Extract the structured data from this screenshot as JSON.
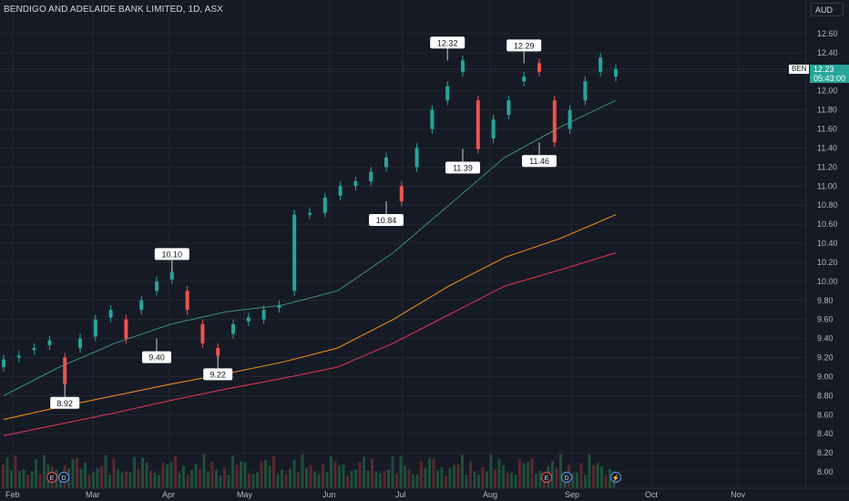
{
  "title": "BENDIGO AND ADELAIDE BANK LIMITED, 1D, ASX",
  "currency": "AUD",
  "symbol_tag": "BEN",
  "last_price": "12.23",
  "countdown": "05:43:00",
  "colors": {
    "background": "#161a25",
    "up": "#26a69a",
    "down": "#ef5350",
    "ma_short": "#3d8f75",
    "ma_mid": "#f7931a",
    "ma_long": "#e0384d",
    "grid": "#232733"
  },
  "chart_data": {
    "type": "candlestick",
    "y_axis": {
      "min": 7.9,
      "max": 12.75,
      "ticks": [
        "12.60",
        "12.40",
        "12.20",
        "12.00",
        "11.80",
        "11.60",
        "11.40",
        "11.20",
        "11.00",
        "10.80",
        "10.60",
        "10.40",
        "10.20",
        "10.00",
        "9.80",
        "9.60",
        "9.40",
        "9.20",
        "9.00",
        "8.80",
        "8.60",
        "8.40",
        "8.20",
        "8.00"
      ]
    },
    "x_axis": {
      "labels": [
        "Feb",
        "Mar",
        "Apr",
        "May",
        "Jun",
        "Jul",
        "Aug",
        "Sep",
        "Oct",
        "Nov"
      ]
    },
    "grid": true,
    "series": [
      {
        "name": "price",
        "points": [
          [
            "Feb",
            9.1,
            9.18
          ],
          [
            "Feb",
            9.2,
            9.22
          ],
          [
            "Feb",
            9.28,
            9.3
          ],
          [
            "Feb",
            9.33,
            9.38
          ],
          [
            "Feb",
            9.2,
            8.92
          ],
          [
            "Feb",
            9.3,
            9.4
          ],
          [
            "Mar",
            9.42,
            9.6
          ],
          [
            "Mar",
            9.62,
            9.7
          ],
          [
            "Mar",
            9.6,
            9.4
          ],
          [
            "Mar",
            9.7,
            9.8
          ],
          [
            "Mar",
            9.9,
            10.0
          ],
          [
            "Apr",
            10.02,
            10.1
          ],
          [
            "Apr",
            9.9,
            9.7
          ],
          [
            "Apr",
            9.55,
            9.35
          ],
          [
            "Apr",
            9.3,
            9.22
          ],
          [
            "Apr",
            9.45,
            9.55
          ],
          [
            "May",
            9.58,
            9.62
          ],
          [
            "May",
            9.6,
            9.7
          ],
          [
            "May",
            9.72,
            9.75
          ],
          [
            "May",
            9.9,
            10.7
          ],
          [
            "May",
            10.7,
            10.72
          ],
          [
            "Jun",
            10.72,
            10.88
          ],
          [
            "Jun",
            10.9,
            11.0
          ],
          [
            "Jun",
            11.0,
            11.05
          ],
          [
            "Jun",
            11.05,
            11.15
          ],
          [
            "Jun",
            11.2,
            11.3
          ],
          [
            "Jul",
            11.0,
            10.84
          ],
          [
            "Jul",
            11.2,
            11.4
          ],
          [
            "Jul",
            11.6,
            11.8
          ],
          [
            "Jul",
            11.9,
            12.05
          ],
          [
            "Jul",
            12.2,
            12.32
          ],
          [
            "Aug",
            11.9,
            11.39
          ],
          [
            "Aug",
            11.5,
            11.7
          ],
          [
            "Aug",
            11.75,
            11.9
          ],
          [
            "Aug",
            12.1,
            12.15
          ],
          [
            "Aug",
            12.29,
            12.2
          ],
          [
            "Sep",
            11.9,
            11.46
          ],
          [
            "Sep",
            11.6,
            11.8
          ],
          [
            "Sep",
            11.9,
            12.1
          ],
          [
            "Sep",
            12.2,
            12.35
          ],
          [
            "Sep",
            12.15,
            12.23
          ]
        ]
      },
      {
        "name": "",
        "values": [
          8.8,
          9.1,
          9.35,
          9.55,
          9.68,
          9.75,
          9.9,
          10.3,
          10.8,
          11.3,
          11.62,
          11.9
        ]
      },
      {
        "name": "",
        "values": [
          8.55,
          8.68,
          8.8,
          8.92,
          9.03,
          9.15,
          9.3,
          9.6,
          9.95,
          10.25,
          10.45,
          10.7
        ]
      },
      {
        "name": "",
        "values": [
          8.38,
          8.5,
          8.62,
          8.75,
          8.87,
          8.98,
          9.1,
          9.35,
          9.65,
          9.95,
          10.12,
          10.3
        ]
      }
    ],
    "annotations": [
      {
        "label": "8.92",
        "x": "Feb",
        "value": 8.92,
        "position": "below"
      },
      {
        "label": "9.40",
        "x": "Mar",
        "value": 9.4,
        "position": "below"
      },
      {
        "label": "10.10",
        "x": "Apr",
        "value": 10.1,
        "position": "above"
      },
      {
        "label": "9.22",
        "x": "Apr",
        "value": 9.22,
        "position": "below"
      },
      {
        "label": "10.84",
        "x": "Jul",
        "value": 10.84,
        "position": "below"
      },
      {
        "label": "12.32",
        "x": "Jul",
        "value": 12.32,
        "position": "above"
      },
      {
        "label": "11.39",
        "x": "Aug",
        "value": 11.39,
        "position": "below"
      },
      {
        "label": "12.29",
        "x": "Aug",
        "value": 12.29,
        "position": "above"
      },
      {
        "label": "11.46",
        "x": "Sep",
        "value": 11.46,
        "position": "below"
      }
    ],
    "events": [
      {
        "x": "Feb",
        "icon": "E"
      },
      {
        "x": "Feb",
        "icon": "D"
      },
      {
        "x": "Aug",
        "icon": "E"
      },
      {
        "x": "Sep",
        "icon": "D"
      },
      {
        "x": "Sep",
        "icon": "lightning"
      }
    ]
  }
}
